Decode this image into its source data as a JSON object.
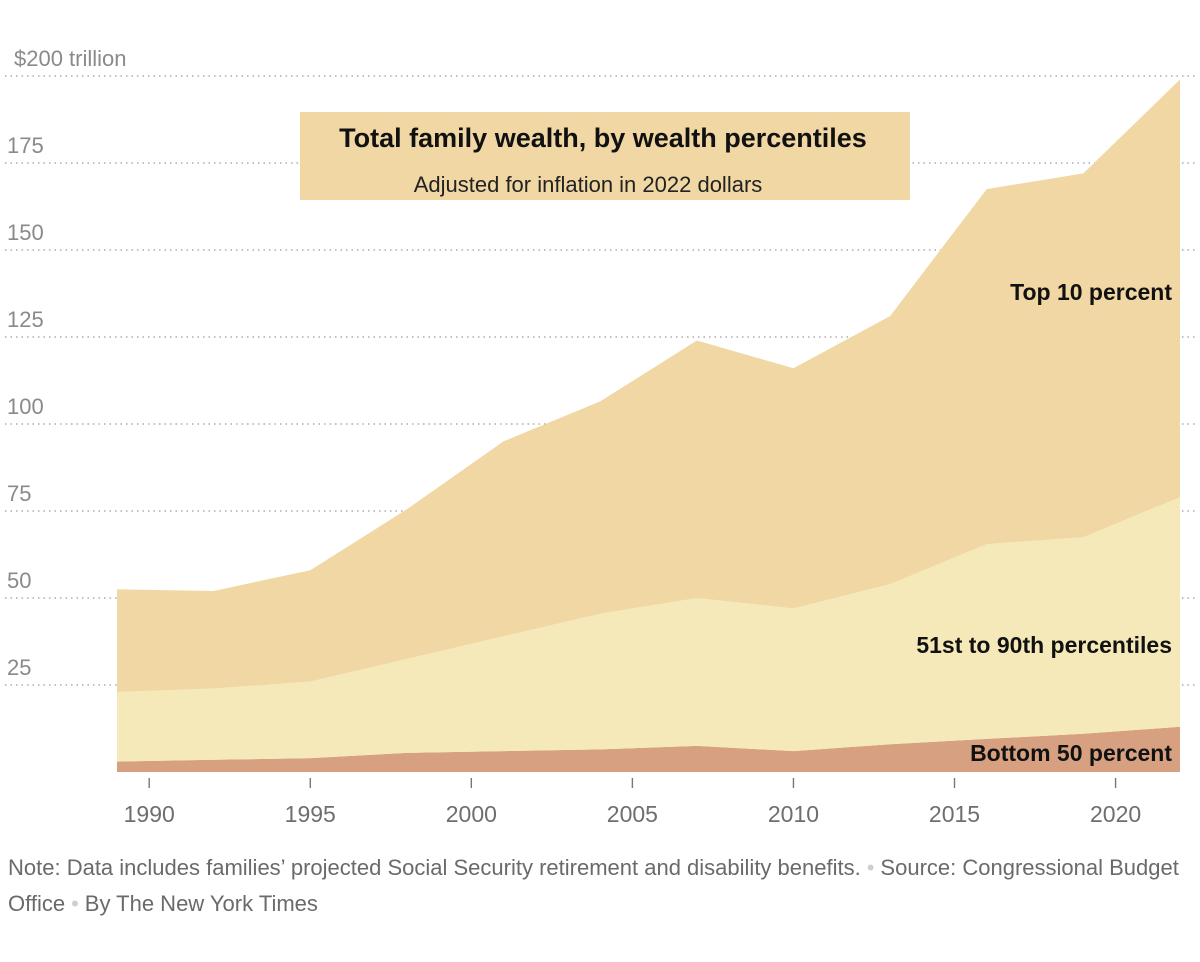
{
  "chart_data": {
    "type": "area",
    "stacked": true,
    "title": "Total family wealth, by wealth percentiles",
    "subtitle": "Adjusted for inflation in 2022 dollars",
    "y_unit_label": "$200 trillion",
    "ylim": [
      0,
      200
    ],
    "y_ticks": [
      25,
      50,
      75,
      100,
      125,
      150,
      175,
      200
    ],
    "y_tick_labels": [
      "25",
      "50",
      "75",
      "100",
      "125",
      "150",
      "175",
      "$200 trillion"
    ],
    "xlim": [
      1988.1,
      2022
    ],
    "x_ticks": [
      1990,
      1995,
      2000,
      2005,
      2010,
      2015,
      2020
    ],
    "x_tick_labels": [
      "1990",
      "1995",
      "2000",
      "2005",
      "2010",
      "2015",
      "2020"
    ],
    "x": [
      1989,
      1992,
      1995,
      1998,
      2001,
      2004,
      2007,
      2010,
      2013,
      2016,
      2019,
      2022
    ],
    "series": [
      {
        "name": "Bottom 50 percent",
        "color": "#d7a080",
        "values": [
          3.0,
          3.5,
          4.0,
          5.5,
          6.0,
          6.5,
          7.5,
          6.0,
          8.0,
          9.5,
          11.0,
          13.0
        ]
      },
      {
        "name": "51st to 90th percentiles",
        "color": "#f5e9b9",
        "values": [
          20.0,
          20.5,
          22.0,
          27.0,
          33.0,
          39.0,
          42.5,
          41.0,
          46.0,
          56.0,
          56.5,
          66.0
        ]
      },
      {
        "name": "Top 10 percent",
        "color": "#f0d7a3",
        "values": [
          29.5,
          28.0,
          32.0,
          43.0,
          56.0,
          61.0,
          74.0,
          69.0,
          77.0,
          102.0,
          104.5,
          120.0
        ]
      }
    ],
    "labels": {
      "top": "Top 10 percent",
      "middle": "51st to 90th percentiles",
      "bottom": "Bottom 50 percent"
    }
  },
  "footer": {
    "note": "Note: Data includes families’ projected Social Security retirement and disability benefits.",
    "source_label": "Source:",
    "source": "Congressional Budget Office",
    "byline": "By The New York Times"
  }
}
